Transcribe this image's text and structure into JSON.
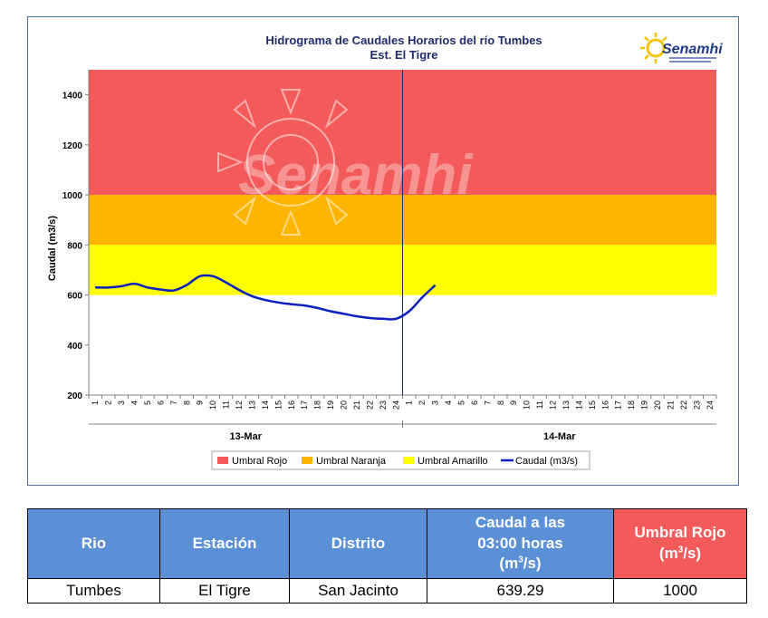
{
  "chart_data": {
    "type": "line",
    "title": "Hidrograma de Caudales Horarios del río Tumbes",
    "subtitle": "Est. El Tigre",
    "ylabel": "Caudal  (m3/s)",
    "xlabel": "",
    "ylim": [
      200,
      1500
    ],
    "yticks": [
      200,
      400,
      600,
      800,
      1000,
      1200,
      1400
    ],
    "x_hours": [
      "1",
      "2",
      "3",
      "4",
      "5",
      "6",
      "7",
      "8",
      "9",
      "10",
      "11",
      "12",
      "13",
      "14",
      "15",
      "16",
      "17",
      "18",
      "19",
      "20",
      "21",
      "22",
      "23",
      "24",
      "1",
      "2",
      "3",
      "4",
      "5",
      "6",
      "7",
      "8",
      "9",
      "10",
      "11",
      "12",
      "13",
      "14",
      "15",
      "16",
      "17",
      "18",
      "19",
      "20",
      "21",
      "22",
      "23",
      "24"
    ],
    "day_labels": [
      "13-Mar",
      "14-Mar"
    ],
    "bands": [
      {
        "name": "Umbral Rojo",
        "from": 1000,
        "to": 1500,
        "color": "#f35a5a"
      },
      {
        "name": "Umbral Naranja",
        "from": 800,
        "to": 1000,
        "color": "#ffb400"
      },
      {
        "name": "Umbral Amarillo",
        "from": 600,
        "to": 800,
        "color": "#ffff00"
      }
    ],
    "series": [
      {
        "name": "Caudal (m3/s)",
        "color": "#0a1fbf",
        "values": [
          630,
          630,
          635,
          645,
          630,
          622,
          618,
          640,
          675,
          675,
          650,
          620,
          595,
          580,
          570,
          563,
          558,
          548,
          535,
          525,
          515,
          508,
          505,
          505,
          535,
          590,
          639.29
        ]
      }
    ],
    "divider_after_hour_index": 23,
    "legend": [
      "Umbral Rojo",
      "Umbral Naranja",
      "Umbral Amarillo",
      "Caudal (m3/s)"
    ],
    "legend_position": "bottom",
    "grid": false
  },
  "logo": {
    "text": "Senamhi",
    "watermark": "Senamhi"
  },
  "table": {
    "headers": {
      "rio": "Rio",
      "estacion": "Estación",
      "distrito": "Distrito",
      "caudal_line1": "Caudal a las",
      "caudal_line2": "03:00 horas",
      "caudal_unit_base": "(m",
      "caudal_unit_sup": "3",
      "caudal_unit_end": "/s)",
      "umbral_line1": "Umbral Rojo",
      "umbral_unit_base": "(m",
      "umbral_unit_sup": "3",
      "umbral_unit_end": "/s)"
    },
    "row": {
      "rio": "Tumbes",
      "estacion": "El Tigre",
      "distrito": "San Jacinto",
      "caudal": "639.29",
      "umbral": "1000"
    }
  },
  "colors": {
    "header_blue": "#5b8fd6",
    "header_red": "#f35a5a",
    "line": "#0a1fbf"
  }
}
